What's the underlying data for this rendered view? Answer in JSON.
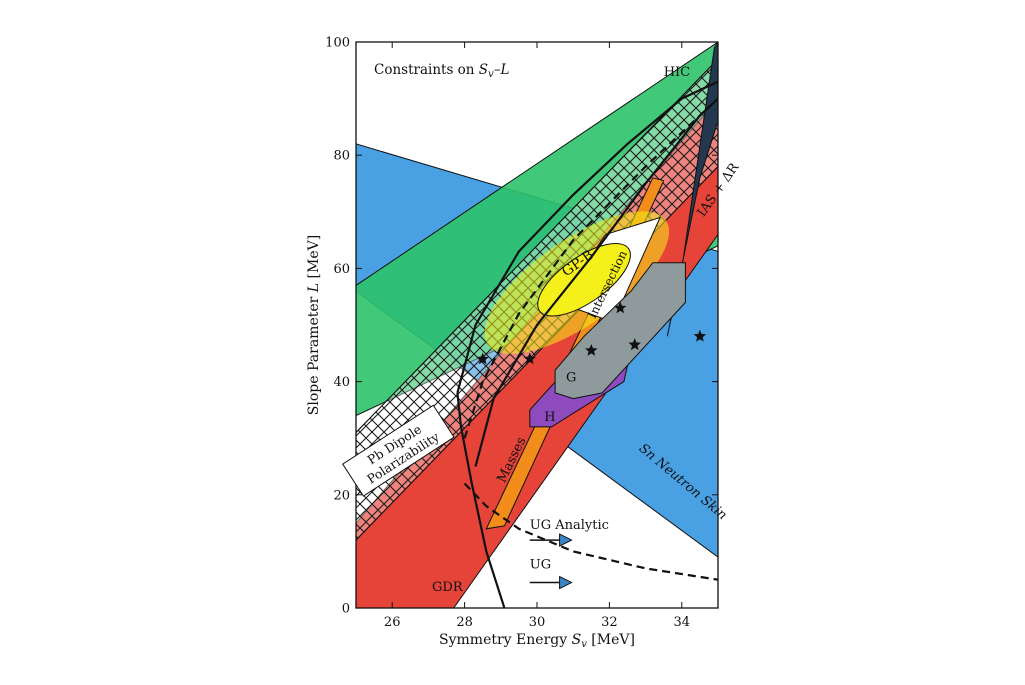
{
  "chart_data": {
    "type": "area",
    "title": "Constraints on S_v–L",
    "title_parts": {
      "main": "Constraints on ",
      "var": "S",
      "sub": "v",
      "rest": "–L"
    },
    "xlabel": "Symmetry Energy S_v [MeV]",
    "xlabel_parts": {
      "main": "Symmetry Energy ",
      "var": "S",
      "sub": "v",
      "unit": " [MeV]"
    },
    "ylabel": "Slope Parameter L [MeV]",
    "ylabel_parts": {
      "main": "Slope Parameter ",
      "var": "L",
      "unit": " [MeV]"
    },
    "xlim": [
      25,
      35
    ],
    "ylim": [
      0,
      100
    ],
    "x_ticks": [
      26,
      28,
      30,
      32,
      34
    ],
    "y_ticks": [
      0,
      20,
      40,
      60,
      80,
      100
    ],
    "grid": false,
    "colors": {
      "hic": "#2ec26a",
      "neutron_skin": "#3f9be0",
      "gdr": "#e64339",
      "pb_dipole": "#ffffff",
      "masses": "#f28c1a",
      "ias": "#23374f",
      "intersection": "#ffffff",
      "gp_b": "#f5ef1a",
      "g": "#8f9a9c",
      "h": "#8d4bbd",
      "arrow": "#3a86c8"
    },
    "regions": [
      {
        "id": "hic",
        "label": "HIC",
        "polygon": [
          [
            25,
            57
          ],
          [
            35,
            100
          ],
          [
            35,
            64
          ],
          [
            25,
            34
          ]
        ]
      },
      {
        "id": "neutron_skin",
        "label": "Sn Neutron Skin",
        "polygon": [
          [
            25,
            82
          ],
          [
            35,
            63
          ],
          [
            35,
            9
          ],
          [
            25,
            56
          ]
        ]
      },
      {
        "id": "gdr",
        "label": "GDR",
        "polygon": [
          [
            25,
            15
          ],
          [
            35,
            90
          ],
          [
            35,
            66
          ],
          [
            27.7,
            0
          ],
          [
            25,
            0
          ]
        ]
      },
      {
        "id": "pb_dipole",
        "label_lines": [
          "Pb Dipole",
          "Polarizability"
        ],
        "polygon": [
          [
            25,
            31
          ],
          [
            35,
            97
          ],
          [
            35,
            78
          ],
          [
            25,
            12
          ]
        ]
      },
      {
        "id": "ias",
        "label": "IAS + ΔR",
        "polygon": [
          [
            33.6,
            48
          ],
          [
            34,
            60
          ],
          [
            34.9,
            99
          ],
          [
            35,
            100
          ],
          [
            35,
            86
          ],
          [
            34.5,
            76
          ]
        ]
      },
      {
        "id": "masses",
        "label": "Masses",
        "polygon": [
          [
            29.1,
            14.5
          ],
          [
            28.6,
            14
          ],
          [
            33.2,
            76
          ],
          [
            33.5,
            75.5
          ]
        ]
      },
      {
        "id": "intersection",
        "label": "Intersection",
        "polygon": [
          [
            30.6,
            54
          ],
          [
            32.1,
            50.5
          ],
          [
            33.4,
            69
          ],
          [
            31.9,
            66
          ]
        ]
      },
      {
        "id": "h",
        "label": "H",
        "polygon": [
          [
            29.8,
            32
          ],
          [
            29.8,
            35
          ],
          [
            31.5,
            47
          ],
          [
            33,
            57
          ],
          [
            32.4,
            40
          ],
          [
            30.4,
            32
          ]
        ]
      },
      {
        "id": "g",
        "label": "G",
        "polygon": [
          [
            30.5,
            38
          ],
          [
            30.5,
            42
          ],
          [
            31.3,
            48
          ],
          [
            32.6,
            56
          ],
          [
            33.2,
            61
          ],
          [
            34.1,
            61
          ],
          [
            34.1,
            54
          ],
          [
            31.8,
            38
          ],
          [
            31,
            37
          ]
        ]
      }
    ],
    "ellipses": [
      {
        "id": "gp_b_outer",
        "center": [
          31.1,
          57.5
        ],
        "rx_mev": 3.0,
        "ry_L": 7.5,
        "angle_deg": -35
      },
      {
        "id": "gp_b",
        "label": "GP-B",
        "center": [
          31.3,
          58
        ],
        "rx_mev": 1.5,
        "ry_L": 4.0,
        "angle_deg": -35
      }
    ],
    "curves": [
      {
        "id": "ug_solid_lower",
        "style": "solid",
        "x": [
          29.1,
          28.6,
          28.2,
          27.9,
          27.8
        ],
        "y": [
          0,
          10,
          22,
          32,
          38
        ]
      },
      {
        "id": "ug_solid_upper",
        "style": "solid",
        "x": [
          27.8,
          28.3,
          29.5,
          31,
          32.5,
          34,
          35
        ],
        "y": [
          38,
          50,
          63,
          73,
          82,
          90,
          93
        ]
      },
      {
        "id": "ug_solid_right",
        "style": "solid",
        "x": [
          28.3,
          28.8,
          30,
          31.5,
          33,
          34.5,
          35
        ],
        "y": [
          25,
          37,
          50,
          62,
          75,
          87,
          90
        ]
      },
      {
        "id": "ug_dashed",
        "style": "dashed",
        "x": [
          28,
          28.5,
          29.5,
          31,
          33,
          35
        ],
        "y": [
          30,
          40,
          52,
          65,
          78,
          90
        ]
      },
      {
        "id": "ug_analytic_tail",
        "style": "dashed",
        "x": [
          28,
          28.6,
          29.5,
          31,
          33,
          35
        ],
        "y": [
          22,
          18,
          14,
          10,
          7,
          5
        ]
      }
    ],
    "stars": [
      [
        28.5,
        44
      ],
      [
        29.8,
        44
      ],
      [
        31.5,
        45.5
      ],
      [
        32.3,
        53
      ],
      [
        32.7,
        46.5
      ],
      [
        34.5,
        48
      ]
    ],
    "arrows": [
      {
        "label": "UG Analytic",
        "from": [
          29.8,
          12
        ],
        "to": [
          30.9,
          12
        ]
      },
      {
        "label": "UG",
        "from": [
          29.8,
          4.5
        ],
        "to": [
          30.9,
          4.5
        ]
      }
    ],
    "annotations": [
      {
        "id": "title",
        "text": "Constraints on S_v–L",
        "at": [
          25.4,
          95
        ]
      },
      {
        "id": "hic",
        "text": "HIC",
        "at": [
          33.5,
          94
        ]
      },
      {
        "id": "gdr",
        "text": "GDR",
        "at": [
          27.1,
          3
        ]
      },
      {
        "id": "masses",
        "text": "Masses",
        "at": [
          29.1,
          22
        ]
      },
      {
        "id": "gp_b",
        "text": "GP-B",
        "at": [
          30.8,
          58.5
        ]
      },
      {
        "id": "intersection",
        "text": "Intersection",
        "at": [
          31.6,
          51
        ]
      },
      {
        "id": "h",
        "text": "H",
        "at": [
          30.2,
          33
        ]
      },
      {
        "id": "g",
        "text": "G",
        "at": [
          30.8,
          40
        ]
      },
      {
        "id": "ias",
        "text": "IAS + ΔR",
        "at": [
          34.6,
          69
        ]
      },
      {
        "id": "sn",
        "text": "Sn Neutron Skin",
        "at": [
          32.8,
          28
        ]
      },
      {
        "id": "ug_analytic",
        "text": "UG Analytic",
        "at": [
          29.8,
          14
        ]
      },
      {
        "id": "ug",
        "text": "UG",
        "at": [
          29.8,
          7
        ]
      }
    ]
  }
}
